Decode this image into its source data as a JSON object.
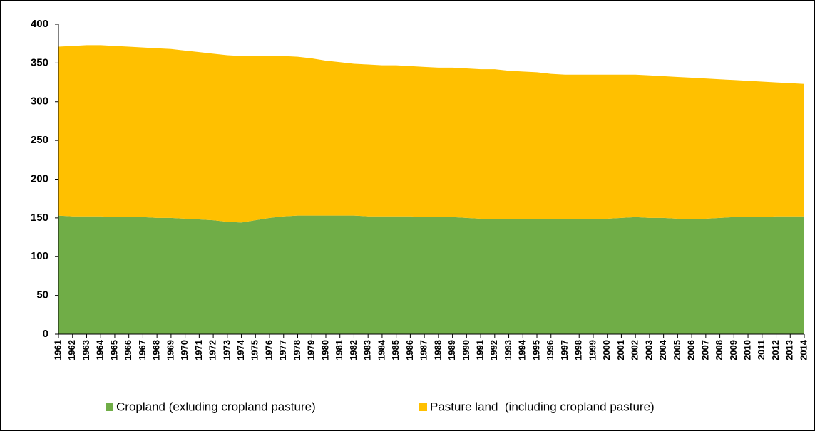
{
  "chart_data": {
    "type": "stacked-area",
    "categories": [
      "1961",
      "1962",
      "1963",
      "1964",
      "1965",
      "1966",
      "1967",
      "1968",
      "1969",
      "1970",
      "1971",
      "1972",
      "1973",
      "1974",
      "1975",
      "1976",
      "1977",
      "1978",
      "1979",
      "1980",
      "1981",
      "1982",
      "1983",
      "1984",
      "1985",
      "1986",
      "1987",
      "1988",
      "1989",
      "1990",
      "1991",
      "1992",
      "1993",
      "1994",
      "1995",
      "1996",
      "1997",
      "1998",
      "1999",
      "2000",
      "2001",
      "2002",
      "2003",
      "2004",
      "2005",
      "2006",
      "2007",
      "2008",
      "2009",
      "2010",
      "2011",
      "2012",
      "2013",
      "2014"
    ],
    "series": [
      {
        "name": "Cropland (exluding cropland pasture)",
        "color": "#70ad47",
        "values": [
          153,
          152,
          152,
          152,
          151,
          151,
          151,
          150,
          150,
          149,
          148,
          147,
          145,
          144,
          147,
          150,
          152,
          153,
          153,
          153,
          153,
          153,
          152,
          152,
          152,
          152,
          151,
          151,
          151,
          150,
          149,
          149,
          148,
          148,
          148,
          148,
          148,
          148,
          149,
          149,
          150,
          151,
          150,
          150,
          149,
          149,
          149,
          150,
          151,
          151,
          151,
          152,
          152,
          152
        ]
      },
      {
        "name": "Pasture land  (including cropland pasture)",
        "color": "#ffc000",
        "values": [
          218,
          220,
          221,
          221,
          221,
          220,
          219,
          219,
          218,
          217,
          216,
          215,
          215,
          215,
          212,
          209,
          207,
          205,
          203,
          200,
          198,
          196,
          196,
          195,
          195,
          194,
          194,
          193,
          193,
          193,
          193,
          193,
          192,
          191,
          190,
          188,
          187,
          187,
          186,
          186,
          185,
          184,
          184,
          183,
          183,
          182,
          181,
          179,
          177,
          176,
          175,
          173,
          172,
          171
        ]
      }
    ],
    "ylim": [
      0,
      400
    ],
    "yticks": [
      0,
      50,
      100,
      150,
      200,
      250,
      300,
      350,
      400
    ]
  }
}
